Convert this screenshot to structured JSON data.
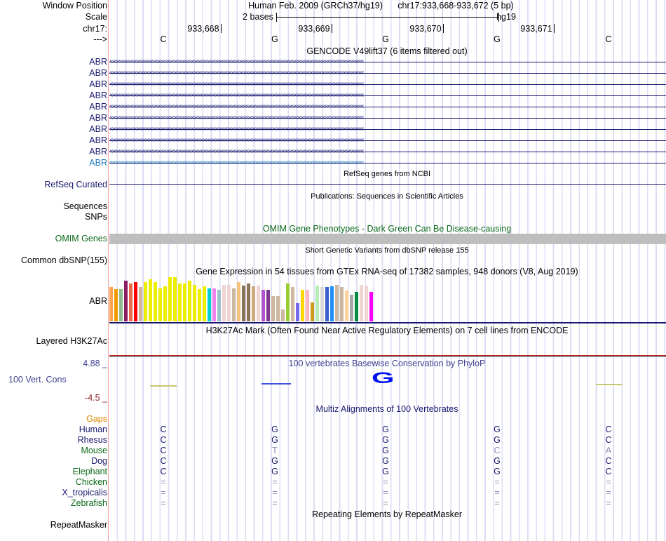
{
  "labels": {
    "window_position": "Window Position",
    "scale": "Scale",
    "chr": "chr17:",
    "strand": "--->"
  },
  "header": {
    "assembly": "Human Feb. 2009 (GRCh37/hg19)",
    "position": "chr17:933,668-933,672 (5 bp)",
    "scale_text": "2 bases",
    "scale_db": "hg19"
  },
  "ruler": {
    "ticks": [
      "933,668",
      "933,669",
      "933,670",
      "933,671"
    ]
  },
  "bases": [
    "C",
    "G",
    "G",
    "G",
    "C"
  ],
  "gencode": {
    "title": "GENCODE V49lift37 (6 items filtered out)",
    "items": [
      "ABR",
      "ABR",
      "ABR",
      "ABR",
      "ABR",
      "ABR",
      "ABR",
      "ABR",
      "ABR",
      "ABR"
    ]
  },
  "refseq": {
    "title": "RefSeq genes from NCBI",
    "label": "RefSeq Curated"
  },
  "publications": {
    "title": "Publications: Sequences in Scientific Articles",
    "labels": [
      "Sequences",
      "SNPs"
    ]
  },
  "omim": {
    "title": "OMIM Gene Phenotypes - Dark Green Can Be Disease-causing",
    "label": "OMIM Genes"
  },
  "dbsnp": {
    "title": "Short Genetic Variants from dbSNP release 155",
    "label": "Common dbSNP(155)"
  },
  "gtex": {
    "title": "Gene Expression in 54 tissues from GTEx RNA-seq of 17382 samples, 948 donors (V8, Aug 2019)",
    "label": "ABR",
    "relative_expression": [
      0.76,
      0.72,
      0.72,
      0.9,
      0.84,
      0.88,
      0.76,
      0.88,
      0.94,
      0.88,
      0.74,
      0.78,
      0.98,
      0.98,
      0.84,
      0.84,
      0.9,
      0.82,
      0.72,
      0.78,
      0.74,
      0.74,
      0.71,
      0.81,
      0.81,
      0.74,
      0.87,
      0.8,
      0.84,
      0.78,
      0.8,
      0.71,
      0.7,
      0.56,
      0.57,
      0.27,
      0.84,
      0.76,
      0.41,
      0.71,
      0.71,
      0.42,
      0.8,
      0.76,
      0.77,
      0.78,
      0.82,
      0.77,
      0.68,
      0.59,
      0.65,
      0.81,
      0.8,
      0.65
    ],
    "colors": [
      "#FFA54F",
      "#EE9A00",
      "#8FBC8F",
      "#8B1C62",
      "#EE6A50",
      "#FF0000",
      "#CDB79E",
      "#EEEE00",
      "#EEEE00",
      "#EEEE00",
      "#EEEE00",
      "#EEEE00",
      "#EEEE00",
      "#EEEE00",
      "#EEEE00",
      "#EEEE00",
      "#EEEE00",
      "#EEEE00",
      "#EEEE00",
      "#EEEE00",
      "#00CED1",
      "#EE82EE",
      "#9AC0CD",
      "#EED5D2",
      "#EED5D2",
      "#CDB79E",
      "#F4C27A",
      "#8B7355",
      "#8B7355",
      "#CDAA7D",
      "#EED5D2",
      "#B452CD",
      "#7A378B",
      "#CDB79E",
      "#CDB79E",
      "#CDB79E",
      "#9ACD32",
      "#CDB79E",
      "#7B68EE",
      "#FFD700",
      "#FFB6C1",
      "#CD9B1D",
      "#B4EEB4",
      "#D9D9D9",
      "#3A5FCD",
      "#1E90FF",
      "#CDB79E",
      "#CDB79E",
      "#FFD39B",
      "#A6A6A6",
      "#008B45",
      "#EED5D2",
      "#EED5D2",
      "#FF00FF"
    ]
  },
  "h3k27ac": {
    "title": "H3K27Ac Mark (Often Found Near Active Regulatory Elements) on 7 cell lines from ENCODE",
    "label": "Layered H3K27Ac"
  },
  "phylop": {
    "title": "100 vertebrates Basewise Conservation by PhyloP",
    "label": "100 Vert. Cons",
    "max": "4.88 _",
    "min": "-4.5 _",
    "logo_base": "G"
  },
  "multiz": {
    "title": "Multiz Alignments of 100 Vertebrates",
    "gaps": "Gaps",
    "species": [
      {
        "name": "Human",
        "bases": [
          "C",
          "G",
          "G",
          "G",
          "C"
        ]
      },
      {
        "name": "Rhesus",
        "bases": [
          "C",
          "G",
          "G",
          "G",
          "C"
        ]
      },
      {
        "name": "Mouse",
        "bases": [
          "C",
          "T",
          "G",
          "C",
          "A"
        ]
      },
      {
        "name": "Dog",
        "bases": [
          "C",
          "G",
          "G",
          "G",
          "C"
        ]
      },
      {
        "name": "Elephant",
        "bases": [
          "C",
          "G",
          "G",
          "G",
          "C"
        ]
      },
      {
        "name": "Chicken",
        "bases": [
          "=",
          "=",
          "=",
          "=",
          "="
        ]
      },
      {
        "name": "X_tropicalis",
        "bases": [
          "=",
          "=",
          "=",
          "=",
          "="
        ]
      },
      {
        "name": "Zebrafish",
        "bases": [
          "=",
          "=",
          "=",
          "=",
          "="
        ]
      }
    ]
  },
  "repeatmasker": {
    "title": "Repeating Elements by RepeatMasker",
    "label": "RepeatMasker"
  }
}
